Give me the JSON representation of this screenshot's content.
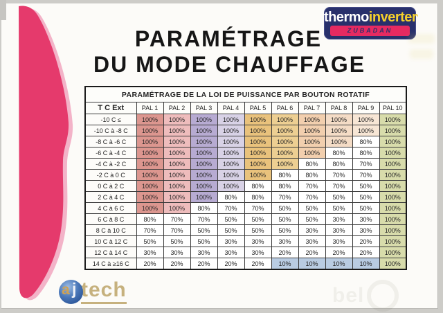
{
  "scan": {
    "background_color": "#cdccc8",
    "paper_color": "#fcfbf8"
  },
  "ribbon": {
    "color": "#e53a6c",
    "edge_color": "#f3b3c8"
  },
  "header": {
    "title_line1": "PARAMÉTRAGE",
    "title_line2": "DU MODE CHAUFFAGE"
  },
  "brand": {
    "thermo": "thermo",
    "inverter": "inverter",
    "trademark": "’",
    "band": "ZUBADAN",
    "navy": "#28306b",
    "yellow": "#f4d02c",
    "band_pink": "#e62a61"
  },
  "table": {
    "title": "PARAMÉTRAGE DE LA LOI DE PUISSANCE PAR BOUTON ROTATIF",
    "column_headers": [
      "T C Ext",
      "PAL 1",
      "PAL 2",
      "PAL 3",
      "PAL 4",
      "PAL 5",
      "PAL 6",
      "PAL 7",
      "PAL 8",
      "PAL 9",
      "PAL 10"
    ],
    "unit": "%",
    "rows": [
      {
        "label": "-10 C ≤",
        "values": [
          100,
          100,
          100,
          100,
          100,
          100,
          100,
          100,
          100,
          100
        ]
      },
      {
        "label": "-10 C à -8 C",
        "values": [
          100,
          100,
          100,
          100,
          100,
          100,
          100,
          100,
          100,
          100
        ]
      },
      {
        "label": "-8 C à -6 C",
        "values": [
          100,
          100,
          100,
          100,
          100,
          100,
          100,
          100,
          80,
          100
        ]
      },
      {
        "label": "-6 C à -4 C",
        "values": [
          100,
          100,
          100,
          100,
          100,
          100,
          100,
          80,
          80,
          100
        ]
      },
      {
        "label": "-4 C à -2 C",
        "values": [
          100,
          100,
          100,
          100,
          100,
          100,
          80,
          80,
          70,
          100
        ]
      },
      {
        "label": "-2 C à 0 C",
        "values": [
          100,
          100,
          100,
          100,
          100,
          80,
          80,
          70,
          70,
          100
        ]
      },
      {
        "label": "0 C à 2 C",
        "values": [
          100,
          100,
          100,
          100,
          80,
          80,
          70,
          70,
          50,
          100
        ]
      },
      {
        "label": "2 C à 4 C",
        "values": [
          100,
          100,
          100,
          80,
          80,
          70,
          70,
          50,
          50,
          100
        ]
      },
      {
        "label": "4 C à 6 C",
        "values": [
          100,
          100,
          80,
          70,
          70,
          50,
          50,
          50,
          50,
          100
        ]
      },
      {
        "label": "6 C à 8 C",
        "values": [
          80,
          70,
          70,
          50,
          50,
          50,
          50,
          30,
          30,
          100
        ]
      },
      {
        "label": "8 C à 10 C",
        "values": [
          70,
          70,
          50,
          50,
          50,
          50,
          30,
          30,
          30,
          100
        ]
      },
      {
        "label": "10 C à 12 C",
        "values": [
          50,
          50,
          50,
          30,
          30,
          30,
          30,
          30,
          20,
          100
        ]
      },
      {
        "label": "12 C à 14 C",
        "values": [
          30,
          30,
          30,
          30,
          30,
          20,
          20,
          20,
          20,
          100
        ]
      },
      {
        "label": "14 C à ≥16 C",
        "values": [
          20,
          20,
          20,
          20,
          20,
          10,
          10,
          10,
          10,
          100
        ]
      }
    ],
    "colors": {
      "columns": [
        "#dc968f",
        "#eebcbc",
        "#b7abd2",
        "#d8d2e6",
        "#e9c27c",
        "#edcf92",
        "#f2cfae",
        "#f4dcc6",
        "#f7e6d5"
      ],
      "pal10_green": "#d8dcab",
      "low_blue": "#b9cce2",
      "white": "#ffffff"
    }
  },
  "footer_logo": {
    "a": "a",
    "j": "j",
    "tech": "tech"
  },
  "watermark": {
    "text": "bel"
  }
}
